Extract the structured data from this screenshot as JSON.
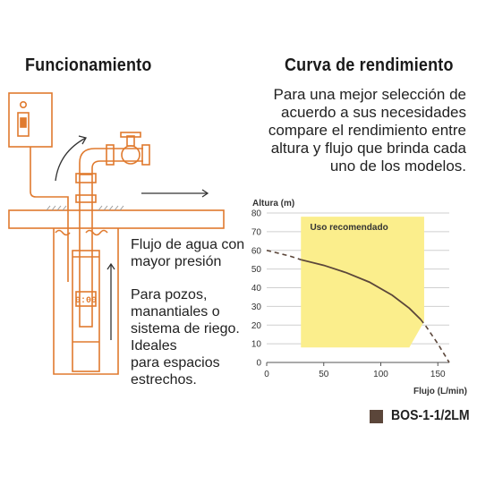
{
  "left_panel": {
    "title": "Funcionamiento",
    "pump_display": "0:00",
    "note_flow": "Flujo de agua con\nmayor presión",
    "note_use": "Para pozos,\nmanantiales o\nsistema de riego.\nIdeales\npara espacios\nestrechos."
  },
  "right_panel": {
    "title": "Curva de rendimiento",
    "description": "Para una mejor selección de\nacuerdo a sus necesidades\ncompare el rendimiento entre\naltura y flujo que brinda cada\nuno de los modelos."
  },
  "colors": {
    "accent": "#e07a2e",
    "zone": "#fbee8c",
    "curve": "#5b463a",
    "grid": "#cfcfcf"
  },
  "icons": [
    "control-box-icon",
    "switch-icon",
    "valve-icon",
    "pump-icon",
    "flow-arrow-icon",
    "water-wave-icon"
  ],
  "chart_data": {
    "type": "line",
    "xlabel": "Flujo (L/min)",
    "ylabel": "Altura (m)",
    "xlim": [
      0,
      160
    ],
    "ylim": [
      0,
      80
    ],
    "x_ticks": [
      0,
      50,
      100,
      150
    ],
    "y_ticks": [
      0,
      10,
      20,
      30,
      40,
      50,
      60,
      70,
      80
    ],
    "grid": true,
    "recommended_zone": {
      "label": "Uso recomendado",
      "points": [
        [
          30,
          8
        ],
        [
          30,
          78
        ],
        [
          138,
          78
        ],
        [
          138,
          22
        ],
        [
          125,
          8
        ]
      ]
    },
    "series": [
      {
        "name": "BOS-1-1/2LM",
        "x": [
          0,
          20,
          30,
          50,
          70,
          90,
          110,
          125,
          135,
          140,
          150,
          160
        ],
        "y": [
          60,
          57,
          55,
          52,
          48,
          43,
          36,
          29,
          23,
          19,
          10,
          0
        ],
        "solid_range": [
          30,
          135
        ]
      }
    ],
    "legend": {
      "position": "bottom-right",
      "entries": [
        "BOS-1-1/2LM"
      ]
    }
  }
}
